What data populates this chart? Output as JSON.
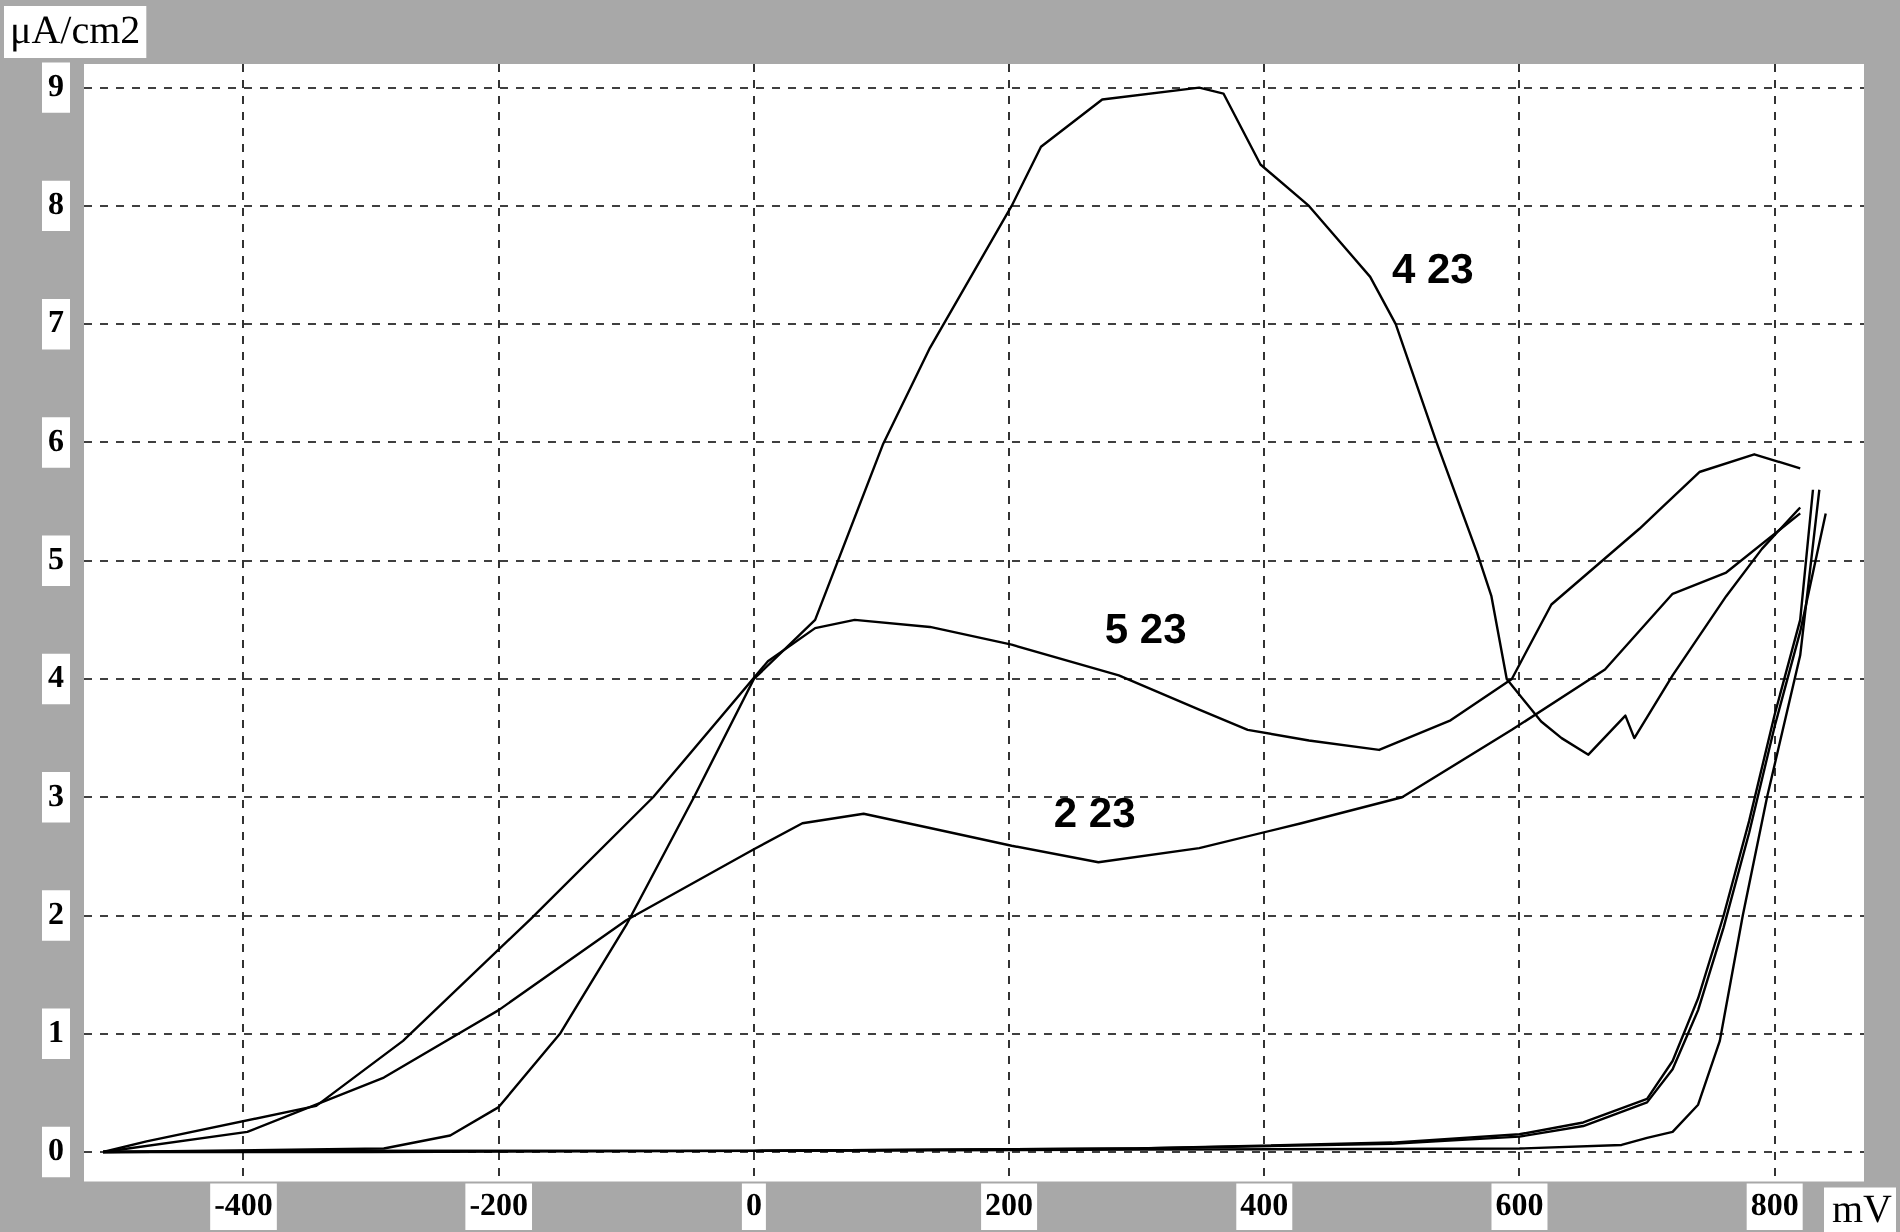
{
  "chart_data": {
    "type": "line",
    "ylabel": "μA/cm2",
    "xlabel": "mV",
    "xlim": [
      -525,
      870
    ],
    "ylim": [
      -0.25,
      9.2
    ],
    "xticks": [
      -400,
      -200,
      0,
      200,
      400,
      600,
      800
    ],
    "yticks": [
      0,
      1,
      2,
      3,
      4,
      5,
      6,
      7,
      8,
      9
    ],
    "grid": true,
    "series": [
      {
        "name": "4 23",
        "color": "#000000",
        "x": [
          -510,
          -290,
          -238,
          -200,
          -152,
          -100,
          -47,
          0,
          48,
          101,
          138,
          202,
          225,
          273,
          349,
          368,
          397,
          435,
          483,
          503,
          535,
          567,
          578,
          590,
          617,
          633,
          654,
          683,
          690,
          720,
          762,
          790,
          820
        ],
        "values": [
          0,
          0.03,
          0.14,
          0.38,
          1.0,
          1.92,
          3.0,
          4.0,
          4.5,
          5.98,
          6.8,
          8.0,
          8.5,
          8.9,
          9.0,
          8.95,
          8.35,
          8.0,
          7.4,
          7.0,
          6.0,
          5.06,
          4.7,
          4.0,
          3.64,
          3.5,
          3.36,
          3.69,
          3.5,
          4.03,
          4.7,
          5.1,
          5.45
        ]
      },
      {
        "name": "5 23",
        "color": "#000000",
        "x": [
          -510,
          -476,
          -343,
          -275,
          -175,
          -79,
          11,
          48,
          79,
          138,
          202,
          286,
          349,
          387,
          435,
          490,
          546,
          594,
          625,
          694,
          741,
          784,
          820
        ],
        "values": [
          0,
          0.09,
          0.39,
          0.94,
          1.97,
          3.0,
          4.15,
          4.43,
          4.5,
          4.44,
          4.29,
          4.03,
          3.74,
          3.57,
          3.48,
          3.4,
          3.65,
          4.0,
          4.63,
          5.27,
          5.75,
          5.9,
          5.78
        ]
      },
      {
        "name": "2 23",
        "color": "#000000",
        "x": [
          -510,
          -397,
          -290,
          -200,
          -100,
          0,
          38,
          86,
          138,
          202,
          270,
          349,
          429,
          508,
          594,
          667,
          720,
          762,
          820
        ],
        "values": [
          0,
          0.17,
          0.63,
          1.2,
          1.96,
          2.56,
          2.78,
          2.86,
          2.74,
          2.59,
          2.45,
          2.57,
          2.78,
          3.0,
          3.57,
          4.08,
          4.72,
          4.9,
          5.4
        ]
      },
      {
        "color": "#000000",
        "x": [
          -510,
          -300,
          0,
          300,
          600,
          680,
          700,
          720,
          740,
          757,
          775,
          794,
          820,
          835
        ],
        "values": [
          0,
          0,
          0.01,
          0.02,
          0.03,
          0.06,
          0.12,
          0.17,
          0.4,
          0.94,
          2.0,
          3.0,
          4.2,
          5.6
        ]
      },
      {
        "color": "#000000",
        "x": [
          -510,
          -300,
          0,
          300,
          500,
          600,
          650,
          700,
          720,
          740,
          760,
          780,
          800,
          820,
          830
        ],
        "values": [
          0,
          0.01,
          0.01,
          0.03,
          0.08,
          0.15,
          0.25,
          0.45,
          0.77,
          1.3,
          2.0,
          2.8,
          3.7,
          4.5,
          5.6
        ]
      },
      {
        "color": "#000000",
        "x": [
          -510,
          -300,
          0,
          300,
          500,
          600,
          650,
          700,
          720,
          740,
          760,
          780,
          800,
          820,
          840
        ],
        "values": [
          0,
          0.01,
          0.01,
          0.03,
          0.07,
          0.13,
          0.22,
          0.42,
          0.7,
          1.2,
          1.9,
          2.7,
          3.6,
          4.4,
          5.4
        ]
      }
    ]
  }
}
